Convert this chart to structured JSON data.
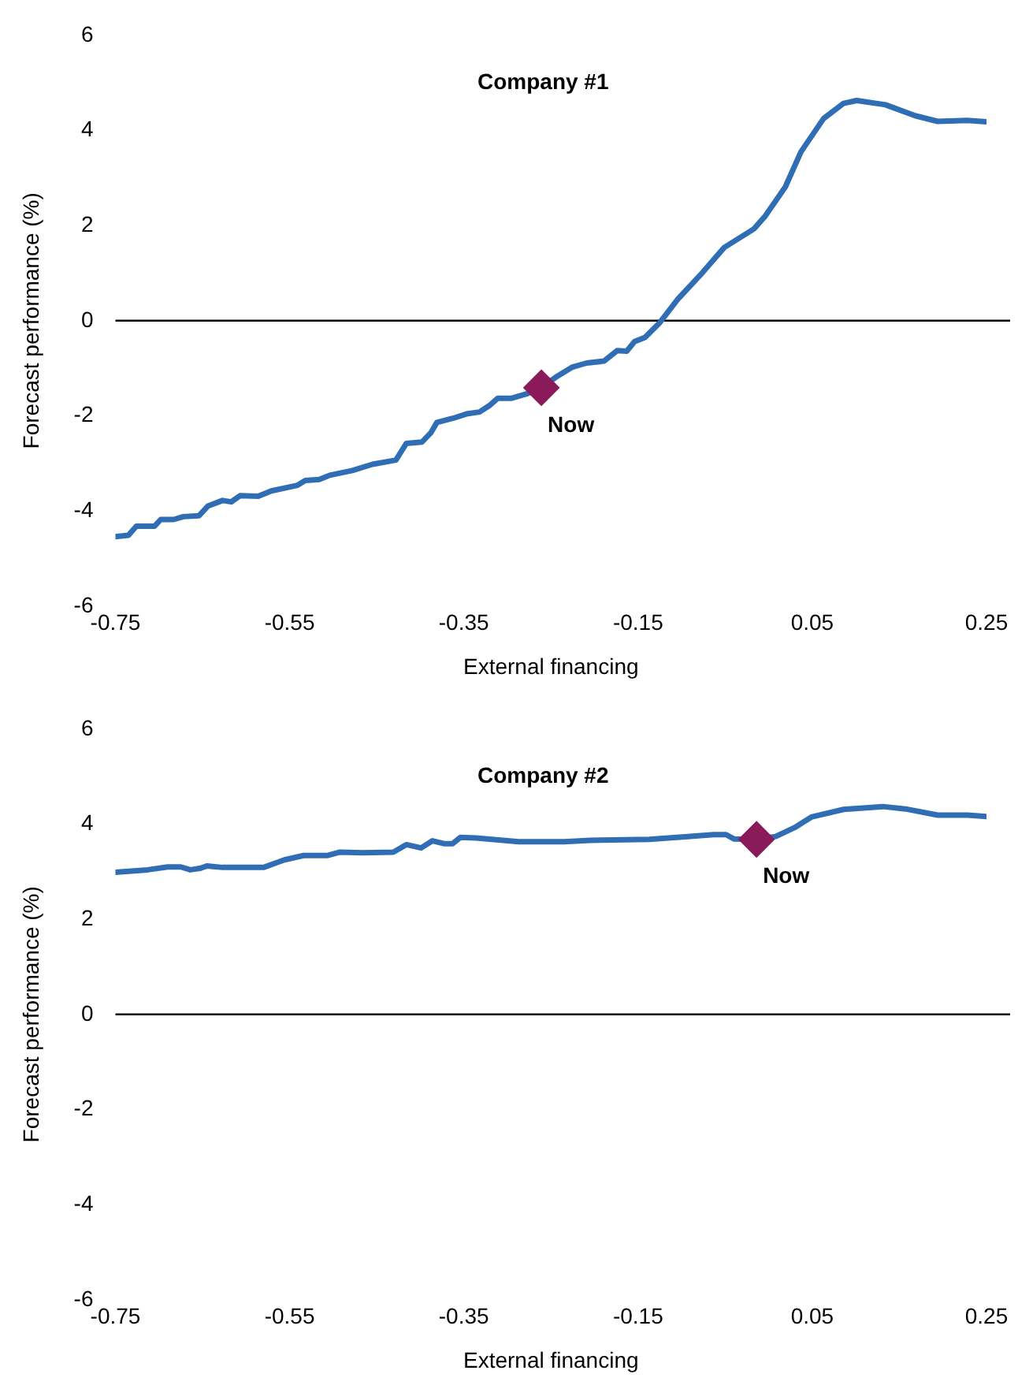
{
  "chart_data": [
    {
      "type": "line",
      "title": "Company #1",
      "xlabel": "External financing",
      "ylabel": "Forecast performance (%)",
      "xlim": [
        -0.75,
        0.25
      ],
      "xticks": [
        -0.75,
        -0.55,
        -0.35,
        -0.15,
        0.05,
        0.25
      ],
      "ylim": [
        -6,
        6
      ],
      "yticks": [
        -6,
        -4,
        -2,
        0,
        2,
        4,
        6
      ],
      "ref_lines": [
        {
          "axis": "y",
          "value": 0,
          "color": "#000000"
        }
      ],
      "annotations": [
        {
          "text": "Now",
          "x": -0.261,
          "y": -1.41
        }
      ],
      "series": [
        {
          "color": "#2f6db5",
          "marker": "none",
          "x": [
            -0.75,
            -0.735,
            -0.726,
            -0.705,
            -0.698,
            -0.683,
            -0.672,
            -0.654,
            -0.644,
            -0.627,
            -0.617,
            -0.607,
            -0.586,
            -0.571,
            -0.541,
            -0.532,
            -0.516,
            -0.504,
            -0.478,
            -0.455,
            -0.428,
            -0.416,
            -0.398,
            -0.388,
            -0.381,
            -0.362,
            -0.347,
            -0.332,
            -0.321,
            -0.311,
            -0.295,
            -0.278,
            -0.261,
            -0.243,
            -0.226,
            -0.209,
            -0.189,
            -0.174,
            -0.163,
            -0.154,
            -0.142,
            -0.125,
            -0.105,
            -0.079,
            -0.051,
            -0.017,
            -0.004,
            0.019,
            0.037,
            0.063,
            0.086,
            0.101,
            0.134,
            0.168,
            0.194,
            0.228,
            0.25
          ],
          "values": [
            -4.54,
            -4.51,
            -4.32,
            -4.32,
            -4.18,
            -4.18,
            -4.12,
            -4.1,
            -3.9,
            -3.78,
            -3.81,
            -3.68,
            -3.69,
            -3.58,
            -3.46,
            -3.36,
            -3.34,
            -3.25,
            -3.15,
            -3.02,
            -2.93,
            -2.58,
            -2.55,
            -2.36,
            -2.14,
            -2.05,
            -1.96,
            -1.92,
            -1.79,
            -1.63,
            -1.63,
            -1.54,
            -1.41,
            -1.17,
            -0.98,
            -0.89,
            -0.85,
            -0.63,
            -0.64,
            -0.44,
            -0.35,
            -0.04,
            0.44,
            0.95,
            1.54,
            1.93,
            2.2,
            2.81,
            3.55,
            4.25,
            4.57,
            4.63,
            4.54,
            4.31,
            4.19,
            4.21,
            4.18
          ]
        },
        {
          "type": "scatter",
          "color": "#8b1a5a",
          "marker": "diamond",
          "x": [
            -0.261
          ],
          "values": [
            -1.41
          ]
        }
      ]
    },
    {
      "type": "line",
      "title": "Company #2",
      "xlabel": "External financing",
      "ylabel": "Forecast performance (%)",
      "xlim": [
        -0.75,
        0.25
      ],
      "xticks": [
        -0.75,
        -0.55,
        -0.35,
        -0.15,
        0.05,
        0.25
      ],
      "ylim": [
        -6,
        6
      ],
      "yticks": [
        -6,
        -4,
        -2,
        0,
        2,
        4,
        6
      ],
      "ref_lines": [
        {
          "axis": "y",
          "value": 0,
          "color": "#000000"
        }
      ],
      "annotations": [
        {
          "text": "Now",
          "x": -0.014,
          "y": 3.68
        }
      ],
      "series": [
        {
          "color": "#2f6db5",
          "marker": "none",
          "x": [
            -0.75,
            -0.713,
            -0.69,
            -0.675,
            -0.664,
            -0.653,
            -0.645,
            -0.627,
            -0.58,
            -0.556,
            -0.534,
            -0.507,
            -0.493,
            -0.466,
            -0.431,
            -0.416,
            -0.399,
            -0.386,
            -0.373,
            -0.363,
            -0.354,
            -0.336,
            -0.287,
            -0.235,
            -0.205,
            -0.137,
            -0.093,
            -0.063,
            -0.049,
            -0.04,
            -0.014,
            0.008,
            0.03,
            0.049,
            0.086,
            0.131,
            0.157,
            0.194,
            0.228,
            0.25
          ],
          "values": [
            2.99,
            3.04,
            3.1,
            3.1,
            3.04,
            3.07,
            3.12,
            3.09,
            3.09,
            3.25,
            3.34,
            3.34,
            3.41,
            3.4,
            3.41,
            3.57,
            3.5,
            3.65,
            3.59,
            3.59,
            3.72,
            3.71,
            3.63,
            3.63,
            3.66,
            3.68,
            3.74,
            3.78,
            3.78,
            3.69,
            3.68,
            3.74,
            3.93,
            4.15,
            4.31,
            4.37,
            4.32,
            4.19,
            4.19,
            4.16
          ]
        },
        {
          "type": "scatter",
          "color": "#8b1a5a",
          "marker": "diamond",
          "x": [
            -0.014
          ],
          "values": [
            3.68
          ]
        }
      ]
    }
  ]
}
